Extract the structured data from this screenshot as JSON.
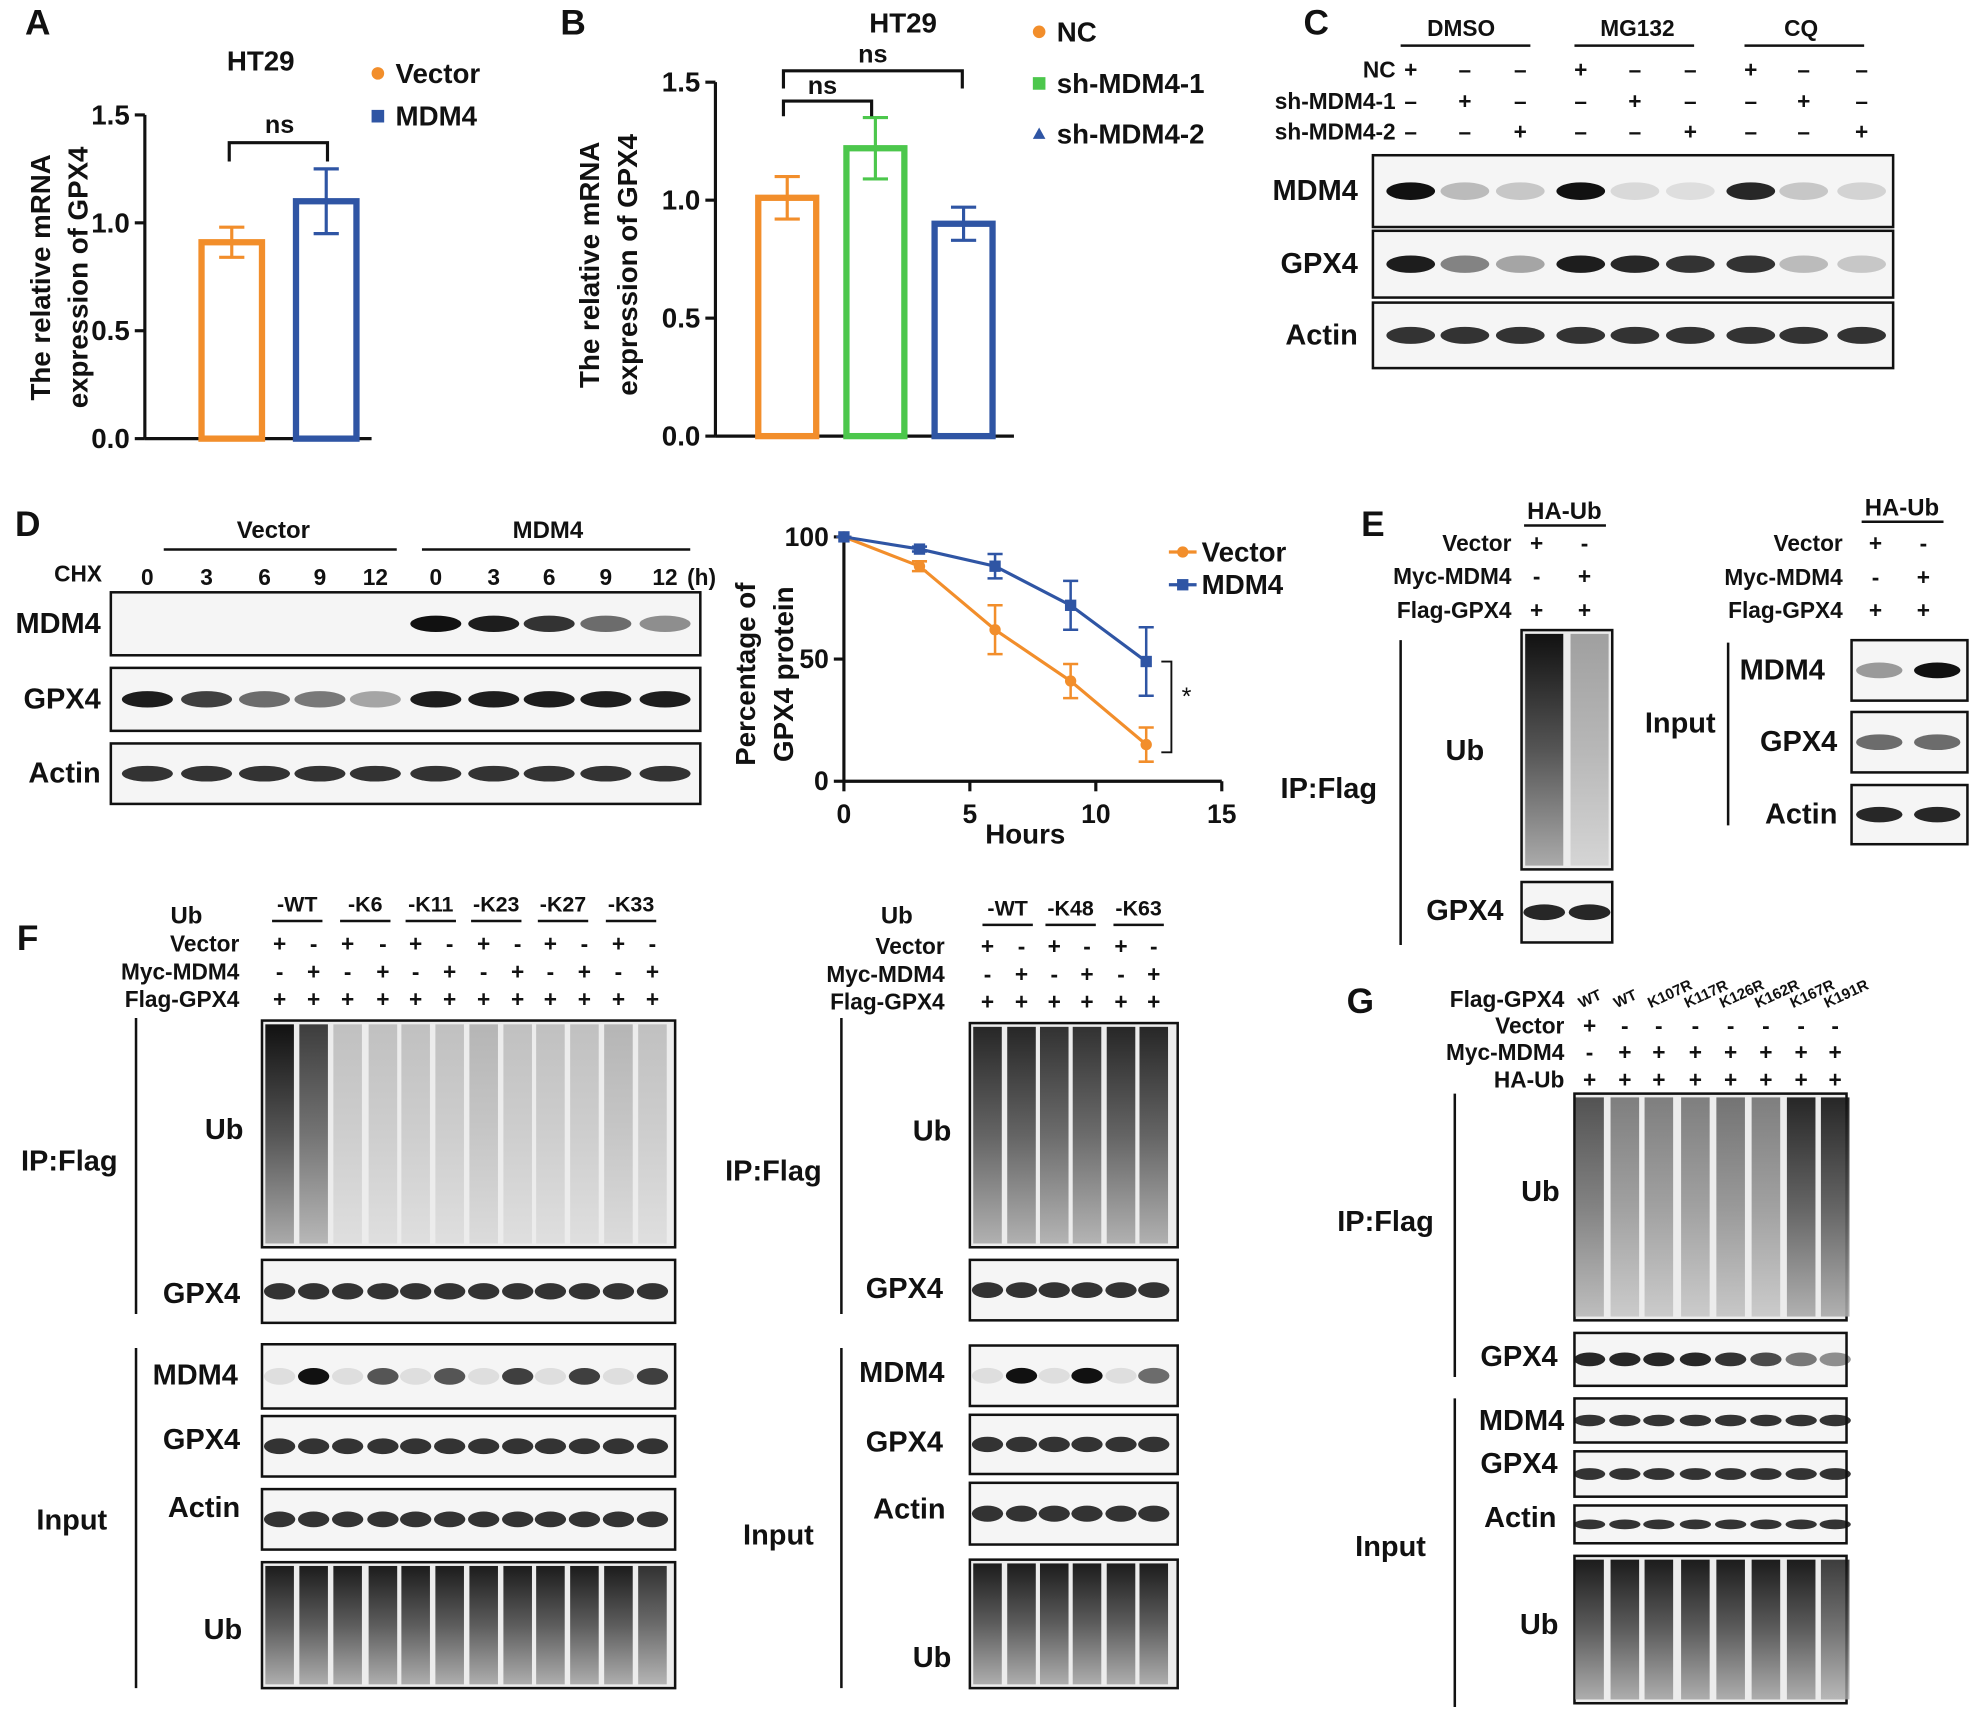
{
  "chart_data": [
    {
      "type": "bar",
      "panel": "A",
      "title": "HT29",
      "ylabel": [
        "The relative mRNA",
        "expression of GPX4"
      ],
      "series": [
        {
          "name": "Vector",
          "color": "#F28E2B",
          "marker": "circle",
          "values": [
            0.91
          ],
          "errors": [
            0.07
          ]
        },
        {
          "name": "MDM4",
          "color": "#2F55A4",
          "marker": "square",
          "values": [
            1.1
          ],
          "errors": [
            0.15
          ]
        }
      ],
      "annotations": [
        "ns"
      ],
      "ylim": [
        0,
        1.5
      ],
      "yticks": [
        {
          "value": 0,
          "label": "0.0"
        },
        {
          "value": 0.5,
          "label": "0.5"
        },
        {
          "value": 1,
          "label": "1.0"
        },
        {
          "value": 1.5,
          "label": "1.5"
        }
      ]
    },
    {
      "type": "bar",
      "panel": "B",
      "title": "HT29",
      "ylabel": [
        "The relative mRNA",
        "expression of GPX4"
      ],
      "series": [
        {
          "name": "NC",
          "color": "#F28E2B",
          "marker": "circle",
          "values": [
            1.01
          ],
          "errors": [
            0.09
          ]
        },
        {
          "name": "sh-MDM4-1",
          "color": "#4CC74C",
          "marker": "square",
          "values": [
            1.22
          ],
          "errors": [
            0.13
          ]
        },
        {
          "name": "sh-MDM4-2",
          "color": "#2F55A4",
          "marker": "triangle",
          "values": [
            0.9
          ],
          "errors": [
            0.07
          ]
        }
      ],
      "annotations": [
        "ns",
        "ns"
      ],
      "ylim": [
        0,
        1.5
      ],
      "yticks": [
        {
          "value": 0,
          "label": "0.0"
        },
        {
          "value": 0.5,
          "label": "0.5"
        },
        {
          "value": 1,
          "label": "1.0"
        },
        {
          "value": 1.5,
          "label": "1.5"
        }
      ]
    },
    {
      "type": "line",
      "xlabel": "Hours",
      "ylabel": [
        "Percentage of",
        "GPX4 protein"
      ],
      "x": [
        0,
        3,
        6,
        9,
        12
      ],
      "series": [
        {
          "name": "Vector",
          "color": "#F28E2B",
          "marker": "circle",
          "values": [
            100,
            88,
            62,
            41,
            15
          ],
          "errors": [
            0,
            2,
            10,
            7,
            7
          ]
        },
        {
          "name": "MDM4",
          "color": "#2F55A4",
          "marker": "square",
          "values": [
            100,
            95,
            88,
            72,
            49
          ],
          "errors": [
            0,
            1,
            5,
            10,
            14
          ]
        }
      ],
      "annotations": [
        "*"
      ],
      "xlim": [
        0,
        15
      ],
      "xticks": [
        0,
        5,
        10,
        15
      ],
      "ylim": [
        0,
        100
      ],
      "yticks": [
        0,
        50,
        100
      ]
    }
  ],
  "blots": {
    "C": {
      "letter": "C",
      "groups": [
        "DMSO",
        "MG132",
        "CQ"
      ],
      "rows": [
        "NC",
        "sh-MDM4-1",
        "sh-MDM4-2"
      ],
      "signs": [
        [
          "+",
          "–",
          "–",
          "+",
          "–",
          "–",
          "+",
          "–",
          "–"
        ],
        [
          "–",
          "+",
          "–",
          "–",
          "+",
          "–",
          "–",
          "+",
          "–"
        ],
        [
          "–",
          "–",
          "+",
          "–",
          "–",
          "+",
          "–",
          "–",
          "+"
        ]
      ],
      "bands": [
        "MDM4",
        "GPX4",
        "Actin"
      ]
    },
    "D": {
      "letter": "D",
      "groups": [
        "Vector",
        "MDM4"
      ],
      "treatment": "CHX",
      "times": [
        "0",
        "3",
        "6",
        "9",
        "12",
        "0",
        "3",
        "6",
        "9",
        "12"
      ],
      "unit": "(h)",
      "bands": [
        "MDM4",
        "GPX4",
        "Actin"
      ]
    },
    "E": {
      "letter": "E",
      "ip": {
        "header": "HA-Ub",
        "rows": [
          "Vector",
          "Myc-MDM4",
          "Flag-GPX4"
        ],
        "signs": [
          [
            "+",
            "-"
          ],
          [
            "-",
            "+"
          ],
          [
            "+",
            "+"
          ]
        ],
        "label": "IP:Flag",
        "bands": [
          "Ub",
          "GPX4"
        ]
      },
      "input": {
        "header": "HA-Ub",
        "rows": [
          "Vector",
          "Myc-MDM4",
          "Flag-GPX4"
        ],
        "signs": [
          [
            "+",
            "-"
          ],
          [
            "-",
            "+"
          ],
          [
            "+",
            "+"
          ]
        ],
        "label": "Input",
        "bands": [
          "MDM4",
          "GPX4",
          "Actin"
        ]
      }
    },
    "F": {
      "letter": "F",
      "left": {
        "ub": "Ub",
        "mutants": [
          "-WT",
          "-K6",
          "-K11",
          "-K23",
          "-K27",
          "-K33"
        ],
        "rows": [
          "Vector",
          "Myc-MDM4",
          "Flag-GPX4"
        ],
        "signs": [
          [
            "+",
            "-",
            "+",
            "-",
            "+",
            "-",
            "+",
            "-",
            "+",
            "-",
            "+",
            "-"
          ],
          [
            "-",
            "+",
            "-",
            "+",
            "-",
            "+",
            "-",
            "+",
            "-",
            "+",
            "-",
            "+"
          ],
          [
            "+",
            "+",
            "+",
            "+",
            "+",
            "+",
            "+",
            "+",
            "+",
            "+",
            "+",
            "+"
          ]
        ],
        "ip_label": "IP:Flag",
        "ip_bands": [
          "Ub",
          "GPX4"
        ],
        "input_label": "Input",
        "input_bands": [
          "MDM4",
          "GPX4",
          "Actin",
          "Ub"
        ]
      },
      "right": {
        "ub": "Ub",
        "mutants": [
          "-WT",
          "-K48",
          "-K63"
        ],
        "rows": [
          "Vector",
          "Myc-MDM4",
          "Flag-GPX4"
        ],
        "signs": [
          [
            "+",
            "-",
            "+",
            "-",
            "+",
            "-"
          ],
          [
            "-",
            "+",
            "-",
            "+",
            "-",
            "+"
          ],
          [
            "+",
            "+",
            "+",
            "+",
            "+",
            "+"
          ]
        ],
        "ip_label": "IP:Flag",
        "ip_bands": [
          "Ub",
          "GPX4"
        ],
        "input_label": "Input",
        "input_bands": [
          "MDM4",
          "GPX4",
          "Actin",
          "Ub"
        ]
      }
    },
    "G": {
      "letter": "G",
      "rows": [
        "Flag-GPX4",
        "Vector",
        "Myc-MDM4",
        "HA-Ub"
      ],
      "lanes": [
        "WT",
        "WT",
        "K107R",
        "K117R",
        "K126R",
        "K162R",
        "K167R",
        "K191R"
      ],
      "signs": [
        [
          "+",
          "-",
          "-",
          "-",
          "-",
          "-",
          "-",
          "-"
        ],
        [
          "-",
          "+",
          "+",
          "+",
          "+",
          "+",
          "+",
          "+"
        ],
        [
          "+",
          "+",
          "+",
          "+",
          "+",
          "+",
          "+",
          "+"
        ]
      ],
      "ip_label": "IP:Flag",
      "ip_bands": [
        "Ub",
        "GPX4"
      ],
      "input_label": "Input",
      "input_bands": [
        "MDM4",
        "GPX4",
        "Actin",
        "Ub"
      ]
    }
  }
}
